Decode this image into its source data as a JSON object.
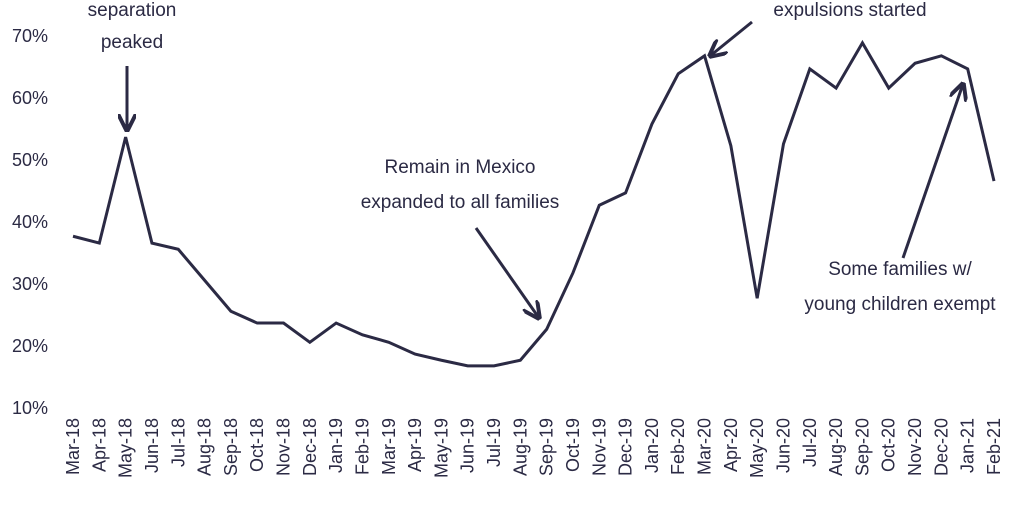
{
  "chart_data": {
    "type": "line",
    "categories": [
      "Mar-18",
      "Apr-18",
      "May-18",
      "Jun-18",
      "Jul-18",
      "Aug-18",
      "Sep-18",
      "Oct-18",
      "Nov-18",
      "Dec-18",
      "Jan-19",
      "Feb-19",
      "Mar-19",
      "Apr-19",
      "May-19",
      "Jun-19",
      "Jul-19",
      "Aug-19",
      "Sep-19",
      "Oct-19",
      "Nov-19",
      "Dec-19",
      "Jan-20",
      "Feb-20",
      "Mar-20",
      "Apr-20",
      "May-20",
      "Jun-20",
      "Jul-20",
      "Aug-20",
      "Sep-20",
      "Oct-20",
      "Nov-20",
      "Dec-20",
      "Jan-21",
      "Feb-21"
    ],
    "values": [
      37.7,
      36.6,
      53.7,
      36.6,
      35.6,
      30.6,
      25.6,
      23.7,
      23.7,
      20.6,
      23.7,
      21.8,
      20.6,
      18.7,
      17.7,
      16.8,
      16.8,
      17.7,
      22.7,
      31.8,
      42.7,
      44.7,
      55.8,
      63.9,
      66.8,
      52.3,
      27.7,
      52.6,
      64.7,
      61.6,
      68.9,
      61.6,
      65.6,
      66.8,
      64.7,
      46.6
    ],
    "color": "#2b2a44",
    "ylim": [
      10,
      70
    ],
    "yticks": [
      {
        "value": 10,
        "label": "10%"
      },
      {
        "value": 20,
        "label": "20%"
      },
      {
        "value": 30,
        "label": "30%"
      },
      {
        "value": 40,
        "label": "40%"
      },
      {
        "value": 50,
        "label": "50%"
      },
      {
        "value": 60,
        "label": "60%"
      },
      {
        "value": 70,
        "label": "70%"
      }
    ],
    "grid": false,
    "annotations": [
      {
        "lines": [
          "separation",
          "peaked"
        ]
      },
      {
        "lines": [
          "expulsions started"
        ]
      },
      {
        "lines": [
          "Remain in Mexico",
          "expanded to all families"
        ]
      },
      {
        "lines": [
          "Some families w/",
          "young children exempt"
        ]
      }
    ]
  }
}
